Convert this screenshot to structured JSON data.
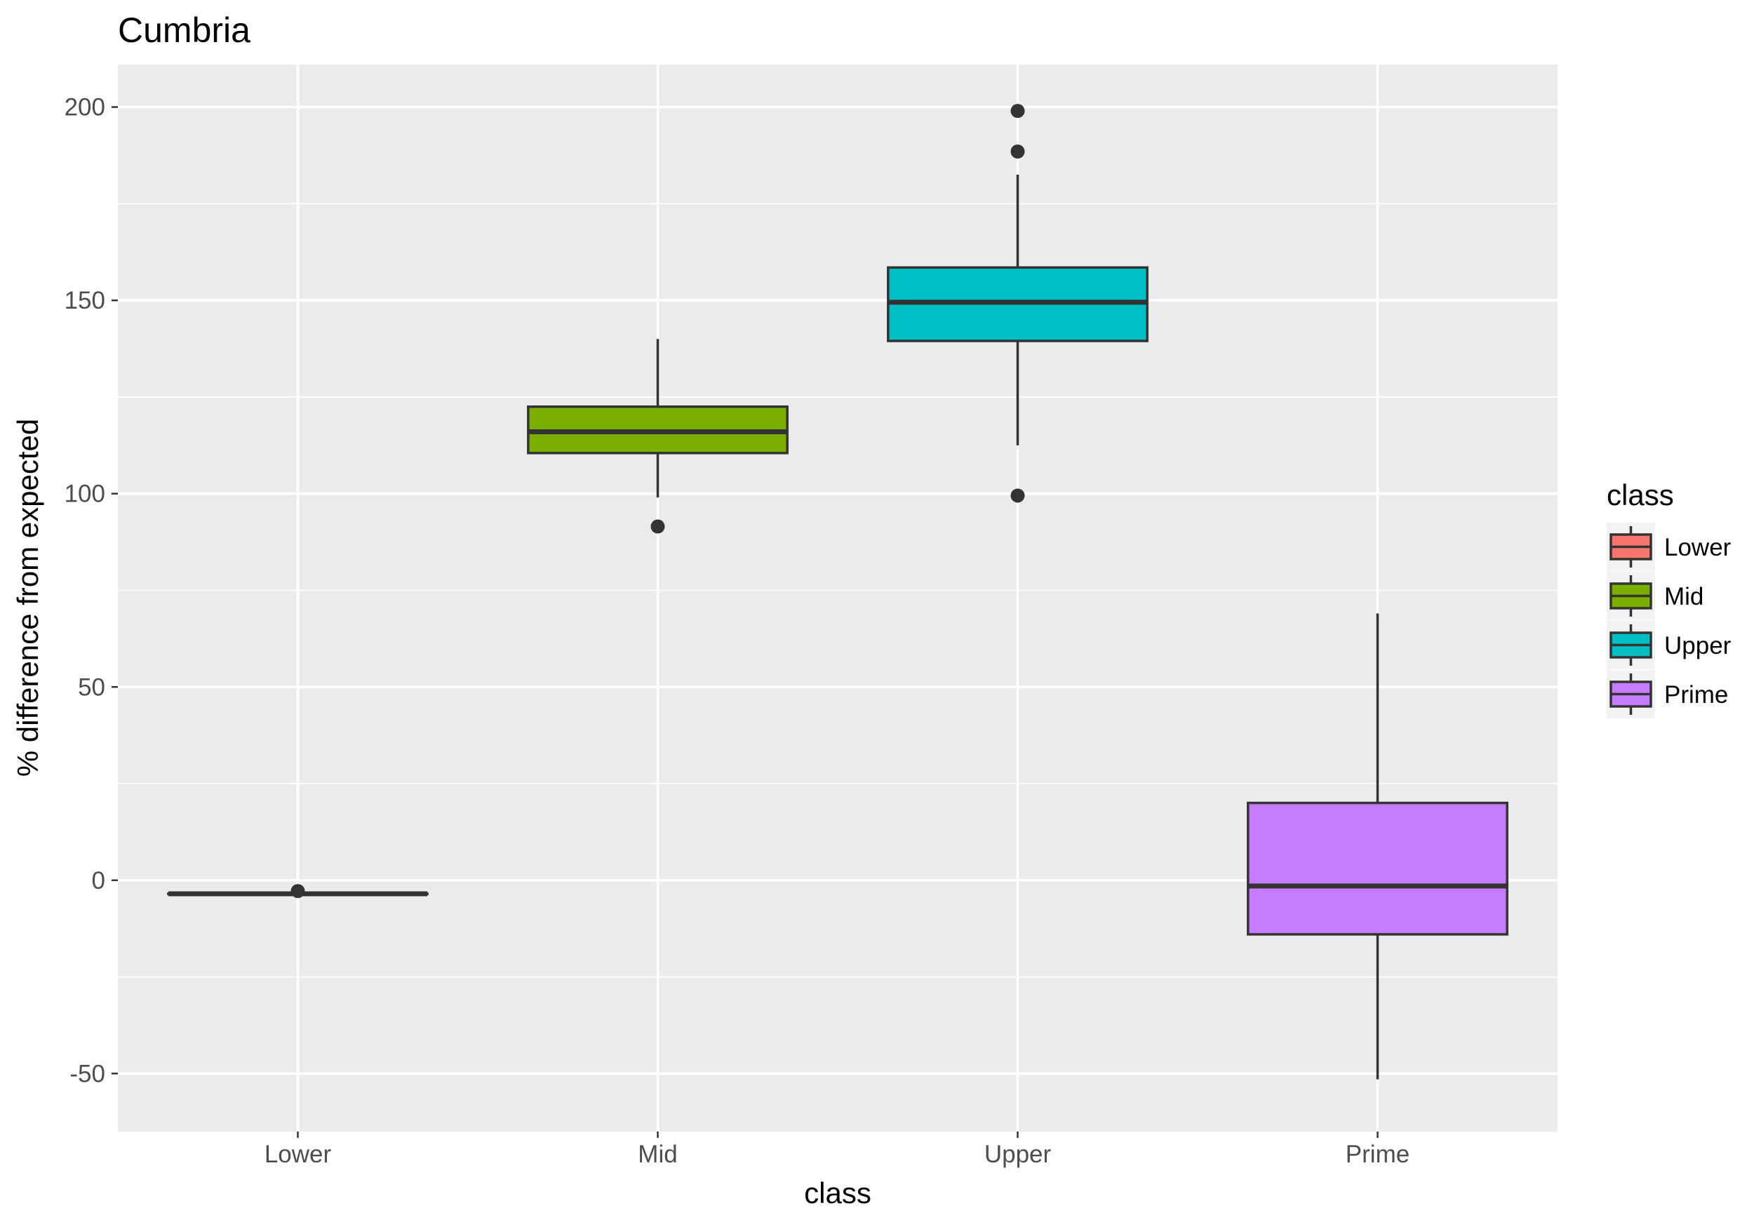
{
  "chart_data": {
    "type": "boxplot",
    "title": "Cumbria",
    "xlabel": "class",
    "ylabel": "% difference from expected",
    "ylim": [
      -65,
      211
    ],
    "y_ticks": [
      -50,
      0,
      50,
      100,
      150,
      200
    ],
    "y_tick_labels": [
      "-50",
      "0",
      "50",
      "100",
      "150",
      "200"
    ],
    "categories": [
      "Lower",
      "Mid",
      "Upper",
      "Prime"
    ],
    "grid": true,
    "legend": {
      "title": "class",
      "position": "right",
      "items": [
        "Lower",
        "Mid",
        "Upper",
        "Prime"
      ]
    },
    "series": [
      {
        "category": "Lower",
        "color": "#F8766D",
        "q1": -3.5,
        "median": -3.5,
        "q3": -3.5,
        "whisker_low": -3.5,
        "whisker_high": -3.5,
        "outliers": [
          -2.8
        ]
      },
      {
        "category": "Mid",
        "color": "#7CAE00",
        "q1": 110.5,
        "median": 116,
        "q3": 122.5,
        "whisker_low": 99,
        "whisker_high": 140,
        "outliers": [
          91.5
        ]
      },
      {
        "category": "Upper",
        "color": "#00BFC4",
        "q1": 139.5,
        "median": 149.5,
        "q3": 158.5,
        "whisker_low": 112.5,
        "whisker_high": 182.5,
        "outliers": [
          99.5,
          188.5,
          199
        ]
      },
      {
        "category": "Prime",
        "color": "#C77CFF",
        "q1": -14,
        "median": -1.5,
        "q3": 20,
        "whisker_low": -51.5,
        "whisker_high": 69,
        "outliers": []
      }
    ]
  }
}
